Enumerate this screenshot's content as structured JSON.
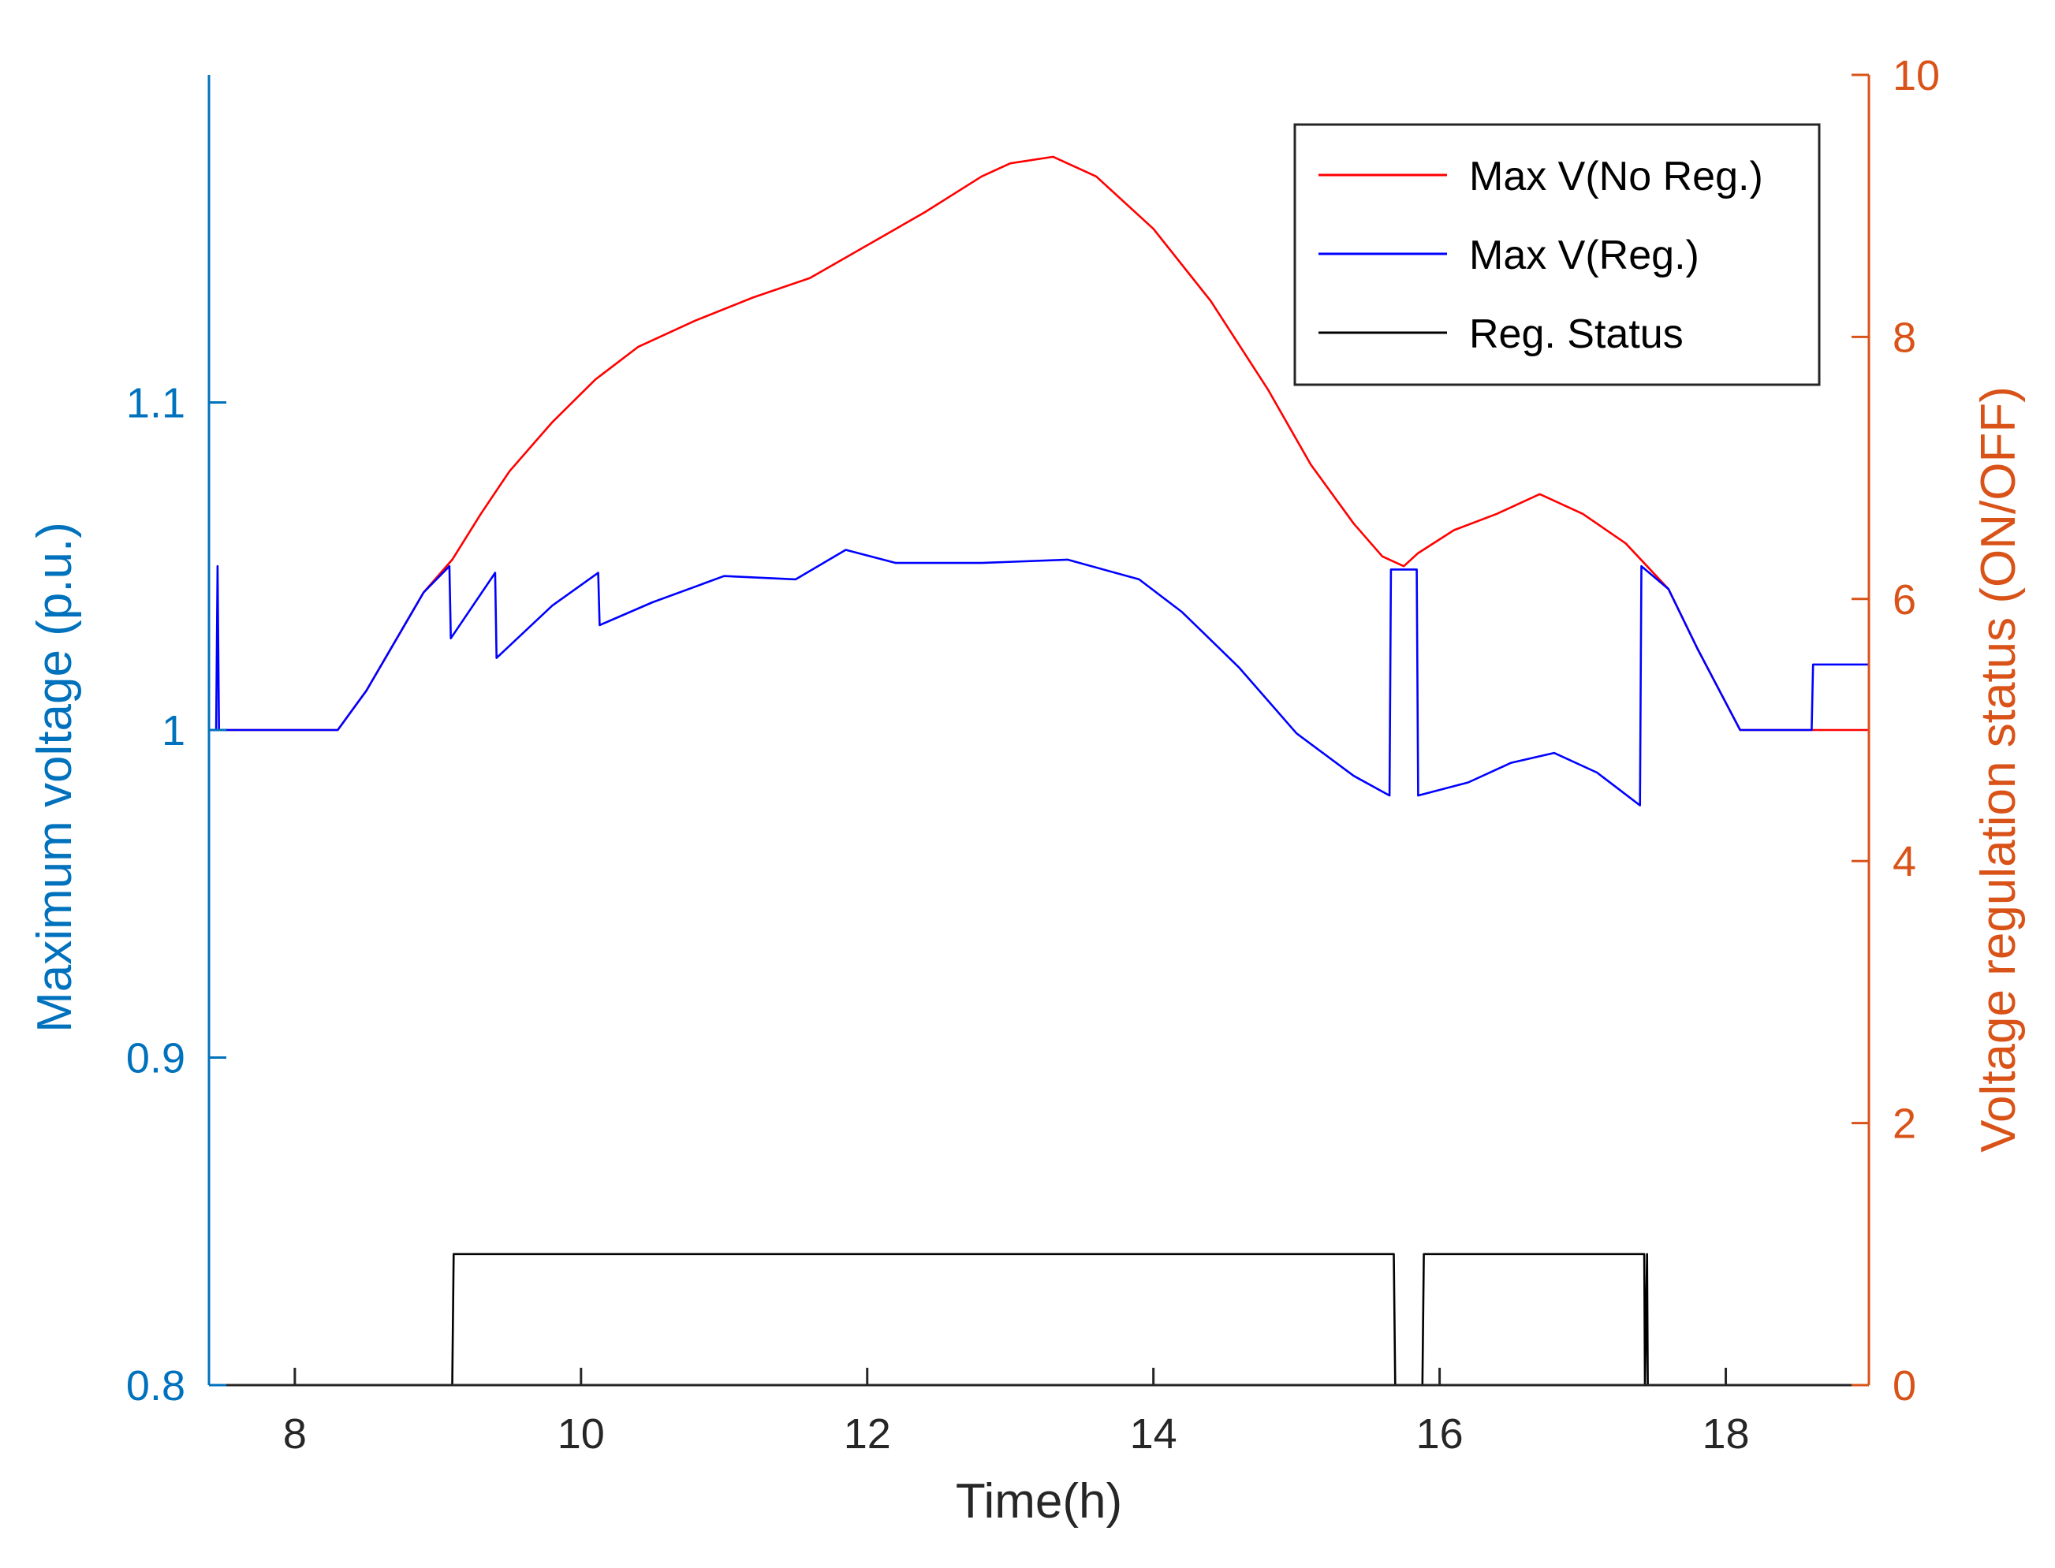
{
  "chart_data": {
    "type": "line",
    "xlabel": "Time(h)",
    "ylabel_left": "Maximum voltage (p.u.)",
    "ylabel_right": "Voltage regulation status (ON/OFF)",
    "xlim": [
      7.4,
      19.0
    ],
    "ylim_left": [
      0.8,
      1.2
    ],
    "ylim_right": [
      0,
      10
    ],
    "xticks": [
      8,
      10,
      12,
      14,
      16,
      18
    ],
    "xtick_labels": [
      "8",
      "10",
      "12",
      "14",
      "16",
      "18"
    ],
    "yticks_left": [
      0.8,
      0.9,
      1.0,
      1.1
    ],
    "ytick_labels_left": [
      "0.8",
      "0.9",
      "1",
      "1.1"
    ],
    "yticks_right": [
      0,
      2,
      4,
      6,
      8,
      10
    ],
    "ytick_labels_right": [
      "0",
      "2",
      "4",
      "6",
      "8",
      "10"
    ],
    "grid": false,
    "legend_position": "top-right",
    "legend": [
      "Max V(No Reg.)",
      "Max V(Reg.)",
      "Reg. Status"
    ],
    "series": [
      {
        "name": "Max V(No Reg.)",
        "axis": "left",
        "color": "#FF0000",
        "x": [
          7.4,
          8.3,
          8.5,
          8.7,
          8.9,
          9.1,
          9.3,
          9.5,
          9.8,
          10.1,
          10.4,
          10.8,
          11.2,
          11.6,
          12.0,
          12.4,
          12.8,
          13.0,
          13.3,
          13.6,
          14.0,
          14.4,
          14.8,
          15.1,
          15.4,
          15.6,
          15.75,
          15.85,
          16.1,
          16.4,
          16.7,
          17.0,
          17.3,
          17.45,
          17.6,
          17.8,
          18.1,
          18.6,
          19.0
        ],
        "values": [
          1.0,
          1.0,
          1.012,
          1.027,
          1.042,
          1.052,
          1.066,
          1.079,
          1.094,
          1.107,
          1.117,
          1.125,
          1.132,
          1.138,
          1.148,
          1.158,
          1.169,
          1.173,
          1.175,
          1.169,
          1.153,
          1.131,
          1.104,
          1.081,
          1.063,
          1.053,
          1.05,
          1.054,
          1.061,
          1.066,
          1.072,
          1.066,
          1.057,
          1.05,
          1.043,
          1.025,
          1.0,
          1.0,
          1.0
        ]
      },
      {
        "name": "Max V(Reg.)",
        "axis": "left",
        "color": "#0000FF",
        "x": [
          7.4,
          7.45,
          7.46,
          7.47,
          7.48,
          8.3,
          8.5,
          8.7,
          8.9,
          9.08,
          9.09,
          9.4,
          9.41,
          9.8,
          10.12,
          10.13,
          10.5,
          11.0,
          11.5,
          11.85,
          12.2,
          12.8,
          13.4,
          13.9,
          14.2,
          14.6,
          15.0,
          15.4,
          15.65,
          15.66,
          15.84,
          15.85,
          16.2,
          16.5,
          16.8,
          17.1,
          17.4,
          17.41,
          17.6,
          17.8,
          18.1,
          18.6,
          18.61,
          19.0
        ],
        "values": [
          1.0,
          1.0,
          1.05,
          1.0,
          1.0,
          1.0,
          1.012,
          1.027,
          1.042,
          1.05,
          1.028,
          1.048,
          1.022,
          1.038,
          1.048,
          1.032,
          1.039,
          1.047,
          1.046,
          1.055,
          1.051,
          1.051,
          1.052,
          1.046,
          1.036,
          1.019,
          0.999,
          0.986,
          0.98,
          1.049,
          1.049,
          0.98,
          0.984,
          0.99,
          0.993,
          0.987,
          0.977,
          1.05,
          1.043,
          1.025,
          1.0,
          1.0,
          1.02,
          1.02
        ]
      },
      {
        "name": "Reg. Status",
        "axis": "right",
        "color": "#000000",
        "x": [
          7.4,
          9.1,
          9.11,
          15.68,
          15.69,
          15.88,
          15.89,
          17.43,
          17.435,
          17.45,
          17.455,
          19.0
        ],
        "values": [
          0,
          0,
          1,
          1,
          0,
          0,
          1,
          1,
          0,
          1,
          0,
          0
        ]
      }
    ]
  }
}
